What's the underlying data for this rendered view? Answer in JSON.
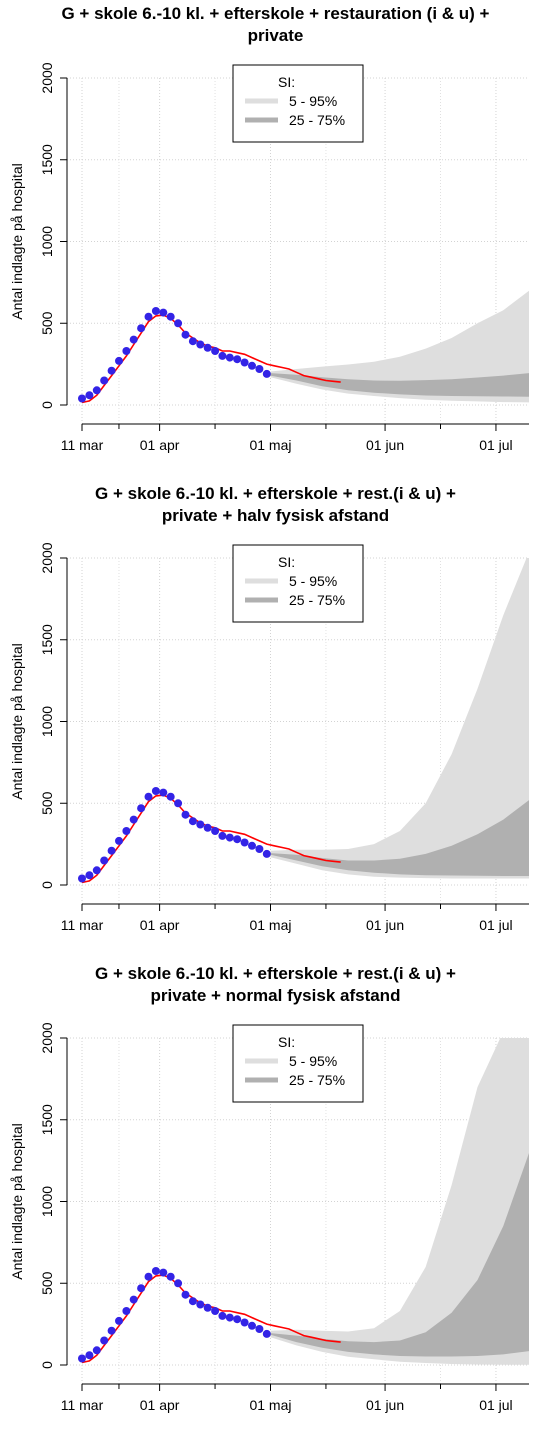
{
  "chart_data": [
    {
      "type": "line",
      "title": "G + skole 6.-10 kl. + efterskole + restauration (i & u) + private",
      "title_lines": [
        "G + skole 6.-10 kl. + efterskole + restauration (i & u) +",
        "private"
      ],
      "ylabel": "Antal indlagte på hospital",
      "xlabel": "",
      "ylim": [
        0,
        2000
      ],
      "xlim": [
        "2020-03-11",
        "2020-07-14"
      ],
      "y_ticks": [
        0,
        500,
        1000,
        1500,
        2000
      ],
      "x_tick_labels": [
        {
          "date": "2020-03-11",
          "label": "11 mar"
        },
        {
          "date": "2020-04-01",
          "label": "01 apr"
        },
        {
          "date": "2020-05-01",
          "label": "01 maj"
        },
        {
          "date": "2020-06-01",
          "label": "01 jun"
        },
        {
          "date": "2020-07-01",
          "label": "01 jul"
        }
      ],
      "grid": true,
      "legend": {
        "title": "SI:",
        "items": [
          {
            "label": "5 - 95%",
            "color": "#dedede"
          },
          {
            "label": "25 - 75%",
            "color": "#b0b0b0"
          }
        ],
        "position": "top-center"
      },
      "bands": {
        "x": [
          "2020-05-01",
          "2020-05-08",
          "2020-05-15",
          "2020-05-22",
          "2020-05-29",
          "2020-06-05",
          "2020-06-12",
          "2020-06-19",
          "2020-06-26",
          "2020-07-03",
          "2020-07-10",
          "2020-07-14"
        ],
        "p95": [
          205,
          220,
          235,
          248,
          265,
          295,
          345,
          410,
          500,
          580,
          700,
          820
        ],
        "p75": [
          195,
          185,
          170,
          158,
          150,
          148,
          152,
          158,
          168,
          180,
          195,
          210
        ],
        "p25": [
          180,
          150,
          115,
          90,
          75,
          65,
          58,
          55,
          53,
          52,
          51,
          50
        ],
        "p05": [
          170,
          130,
          95,
          70,
          55,
          42,
          32,
          26,
          22,
          18,
          16,
          15
        ]
      },
      "series": [
        {
          "color": "#3323e6",
          "kind": "points",
          "x": [
            "2020-03-11",
            "2020-03-13",
            "2020-03-15",
            "2020-03-17",
            "2020-03-19",
            "2020-03-21",
            "2020-03-23",
            "2020-03-25",
            "2020-03-27",
            "2020-03-29",
            "2020-03-31",
            "2020-04-02",
            "2020-04-04",
            "2020-04-06",
            "2020-04-08",
            "2020-04-10",
            "2020-04-12",
            "2020-04-14",
            "2020-04-16",
            "2020-04-18",
            "2020-04-20",
            "2020-04-22",
            "2020-04-24",
            "2020-04-26",
            "2020-04-28",
            "2020-04-30"
          ],
          "y": [
            40,
            60,
            90,
            150,
            210,
            270,
            330,
            400,
            470,
            540,
            575,
            565,
            540,
            500,
            430,
            390,
            370,
            350,
            330,
            300,
            290,
            280,
            260,
            240,
            220,
            190
          ]
        },
        {
          "color": "#ff0000",
          "kind": "line",
          "x": [
            "2020-03-11",
            "2020-03-13",
            "2020-03-15",
            "2020-03-17",
            "2020-03-19",
            "2020-03-21",
            "2020-03-23",
            "2020-03-25",
            "2020-03-27",
            "2020-03-29",
            "2020-03-31",
            "2020-04-02",
            "2020-04-04",
            "2020-04-06",
            "2020-04-08",
            "2020-04-10",
            "2020-04-12",
            "2020-04-14",
            "2020-04-16",
            "2020-04-18",
            "2020-04-20",
            "2020-04-22",
            "2020-04-24",
            "2020-04-26",
            "2020-04-28",
            "2020-04-30",
            "2020-05-02",
            "2020-05-04",
            "2020-05-06",
            "2020-05-08",
            "2020-05-10",
            "2020-05-12",
            "2020-05-14",
            "2020-05-16",
            "2020-05-18",
            "2020-05-20"
          ],
          "y": [
            15,
            25,
            60,
            120,
            180,
            240,
            300,
            370,
            440,
            510,
            545,
            550,
            530,
            490,
            440,
            410,
            380,
            360,
            350,
            330,
            330,
            320,
            310,
            290,
            270,
            250,
            240,
            230,
            220,
            200,
            180,
            170,
            160,
            150,
            145,
            140
          ]
        }
      ]
    },
    {
      "type": "line",
      "title": "G + skole 6.-10 kl. + efterskole + rest.(i & u) + private + halv fysisk afstand",
      "title_lines": [
        "G + skole 6.-10 kl. + efterskole + rest.(i & u) +",
        "private + halv fysisk afstand"
      ],
      "ylabel": "Antal indlagte på hospital",
      "xlabel": "",
      "ylim": [
        0,
        2000
      ],
      "xlim": [
        "2020-03-11",
        "2020-07-14"
      ],
      "y_ticks": [
        0,
        500,
        1000,
        1500,
        2000
      ],
      "x_tick_labels": [
        {
          "date": "2020-03-11",
          "label": "11 mar"
        },
        {
          "date": "2020-04-01",
          "label": "01 apr"
        },
        {
          "date": "2020-05-01",
          "label": "01 maj"
        },
        {
          "date": "2020-06-01",
          "label": "01 jun"
        },
        {
          "date": "2020-07-01",
          "label": "01 jul"
        }
      ],
      "grid": true,
      "legend": {
        "title": "SI:",
        "items": [
          {
            "label": "5 - 95%",
            "color": "#dedede"
          },
          {
            "label": "25 - 75%",
            "color": "#b0b0b0"
          }
        ],
        "position": "top-center"
      },
      "bands": {
        "x": [
          "2020-05-01",
          "2020-05-08",
          "2020-05-15",
          "2020-05-22",
          "2020-05-29",
          "2020-06-05",
          "2020-06-12",
          "2020-06-19",
          "2020-06-26",
          "2020-07-03",
          "2020-07-10",
          "2020-07-14"
        ],
        "p95": [
          210,
          215,
          215,
          220,
          250,
          330,
          500,
          800,
          1200,
          1650,
          2050,
          2100
        ],
        "p75": [
          195,
          185,
          165,
          150,
          150,
          160,
          190,
          240,
          310,
          400,
          520,
          600
        ],
        "p25": [
          185,
          150,
          115,
          90,
          75,
          65,
          60,
          58,
          56,
          55,
          55,
          55
        ],
        "p05": [
          170,
          130,
          90,
          65,
          50,
          45,
          42,
          40,
          40,
          40,
          40,
          40
        ]
      },
      "series": [
        {
          "color": "#3323e6",
          "kind": "points",
          "x": [
            "2020-03-11",
            "2020-03-13",
            "2020-03-15",
            "2020-03-17",
            "2020-03-19",
            "2020-03-21",
            "2020-03-23",
            "2020-03-25",
            "2020-03-27",
            "2020-03-29",
            "2020-03-31",
            "2020-04-02",
            "2020-04-04",
            "2020-04-06",
            "2020-04-08",
            "2020-04-10",
            "2020-04-12",
            "2020-04-14",
            "2020-04-16",
            "2020-04-18",
            "2020-04-20",
            "2020-04-22",
            "2020-04-24",
            "2020-04-26",
            "2020-04-28",
            "2020-04-30"
          ],
          "y": [
            40,
            60,
            90,
            150,
            210,
            270,
            330,
            400,
            470,
            540,
            575,
            565,
            540,
            500,
            430,
            390,
            370,
            350,
            330,
            300,
            290,
            280,
            260,
            240,
            220,
            190
          ]
        },
        {
          "color": "#ff0000",
          "kind": "line",
          "x": [
            "2020-03-11",
            "2020-03-13",
            "2020-03-15",
            "2020-03-17",
            "2020-03-19",
            "2020-03-21",
            "2020-03-23",
            "2020-03-25",
            "2020-03-27",
            "2020-03-29",
            "2020-03-31",
            "2020-04-02",
            "2020-04-04",
            "2020-04-06",
            "2020-04-08",
            "2020-04-10",
            "2020-04-12",
            "2020-04-14",
            "2020-04-16",
            "2020-04-18",
            "2020-04-20",
            "2020-04-22",
            "2020-04-24",
            "2020-04-26",
            "2020-04-28",
            "2020-04-30",
            "2020-05-02",
            "2020-05-04",
            "2020-05-06",
            "2020-05-08",
            "2020-05-10",
            "2020-05-12",
            "2020-05-14",
            "2020-05-16",
            "2020-05-18",
            "2020-05-20"
          ],
          "y": [
            15,
            25,
            60,
            120,
            180,
            240,
            300,
            370,
            440,
            510,
            545,
            550,
            530,
            490,
            440,
            410,
            380,
            360,
            350,
            330,
            330,
            320,
            310,
            290,
            270,
            250,
            240,
            230,
            220,
            200,
            180,
            170,
            160,
            150,
            145,
            140
          ]
        }
      ]
    },
    {
      "type": "line",
      "title": "G + skole 6.-10 kl. + efterskole + rest.(i & u) + private + normal fysisk afstand",
      "title_lines": [
        "G + skole 6.-10 kl. + efterskole + rest.(i & u) +",
        "private + normal fysisk afstand"
      ],
      "ylabel": "Antal indlagte på hospital",
      "xlabel": "",
      "ylim": [
        0,
        2000
      ],
      "xlim": [
        "2020-03-11",
        "2020-07-14"
      ],
      "y_ticks": [
        0,
        500,
        1000,
        1500,
        2000
      ],
      "x_tick_labels": [
        {
          "date": "2020-03-11",
          "label": "11 mar"
        },
        {
          "date": "2020-04-01",
          "label": "01 apr"
        },
        {
          "date": "2020-05-01",
          "label": "01 maj"
        },
        {
          "date": "2020-06-01",
          "label": "01 jun"
        },
        {
          "date": "2020-07-01",
          "label": "01 jul"
        }
      ],
      "grid": true,
      "legend": {
        "title": "SI:",
        "items": [
          {
            "label": "5 - 95%",
            "color": "#dedede"
          },
          {
            "label": "25 - 75%",
            "color": "#b0b0b0"
          }
        ],
        "position": "top-center"
      },
      "bands": {
        "x": [
          "2020-05-01",
          "2020-05-08",
          "2020-05-15",
          "2020-05-22",
          "2020-05-29",
          "2020-06-05",
          "2020-06-12",
          "2020-06-19",
          "2020-06-26",
          "2020-07-03",
          "2020-07-10",
          "2020-07-14"
        ],
        "p95": [
          210,
          215,
          210,
          205,
          225,
          330,
          600,
          1100,
          1700,
          2100,
          2100,
          2100
        ],
        "p75": [
          195,
          180,
          160,
          145,
          140,
          150,
          200,
          320,
          520,
          850,
          1300,
          1600
        ],
        "p25": [
          185,
          140,
          105,
          80,
          65,
          55,
          52,
          52,
          55,
          65,
          85,
          100
        ],
        "p05": [
          170,
          120,
          80,
          50,
          35,
          20,
          12,
          6,
          3,
          2,
          2,
          2
        ]
      },
      "series": [
        {
          "color": "#3323e6",
          "kind": "points",
          "x": [
            "2020-03-11",
            "2020-03-13",
            "2020-03-15",
            "2020-03-17",
            "2020-03-19",
            "2020-03-21",
            "2020-03-23",
            "2020-03-25",
            "2020-03-27",
            "2020-03-29",
            "2020-03-31",
            "2020-04-02",
            "2020-04-04",
            "2020-04-06",
            "2020-04-08",
            "2020-04-10",
            "2020-04-12",
            "2020-04-14",
            "2020-04-16",
            "2020-04-18",
            "2020-04-20",
            "2020-04-22",
            "2020-04-24",
            "2020-04-26",
            "2020-04-28",
            "2020-04-30"
          ],
          "y": [
            40,
            60,
            90,
            150,
            210,
            270,
            330,
            400,
            470,
            540,
            575,
            565,
            540,
            500,
            430,
            390,
            370,
            350,
            330,
            300,
            290,
            280,
            260,
            240,
            220,
            190
          ]
        },
        {
          "color": "#ff0000",
          "kind": "line",
          "x": [
            "2020-03-11",
            "2020-03-13",
            "2020-03-15",
            "2020-03-17",
            "2020-03-19",
            "2020-03-21",
            "2020-03-23",
            "2020-03-25",
            "2020-03-27",
            "2020-03-29",
            "2020-03-31",
            "2020-04-02",
            "2020-04-04",
            "2020-04-06",
            "2020-04-08",
            "2020-04-10",
            "2020-04-12",
            "2020-04-14",
            "2020-04-16",
            "2020-04-18",
            "2020-04-20",
            "2020-04-22",
            "2020-04-24",
            "2020-04-26",
            "2020-04-28",
            "2020-04-30",
            "2020-05-02",
            "2020-05-04",
            "2020-05-06",
            "2020-05-08",
            "2020-05-10",
            "2020-05-12",
            "2020-05-14",
            "2020-05-16",
            "2020-05-18",
            "2020-05-20"
          ],
          "y": [
            15,
            25,
            60,
            120,
            180,
            240,
            300,
            370,
            440,
            510,
            545,
            550,
            530,
            490,
            440,
            410,
            380,
            360,
            350,
            330,
            330,
            320,
            310,
            290,
            270,
            250,
            240,
            230,
            220,
            200,
            180,
            170,
            160,
            150,
            145,
            140
          ]
        }
      ]
    }
  ]
}
